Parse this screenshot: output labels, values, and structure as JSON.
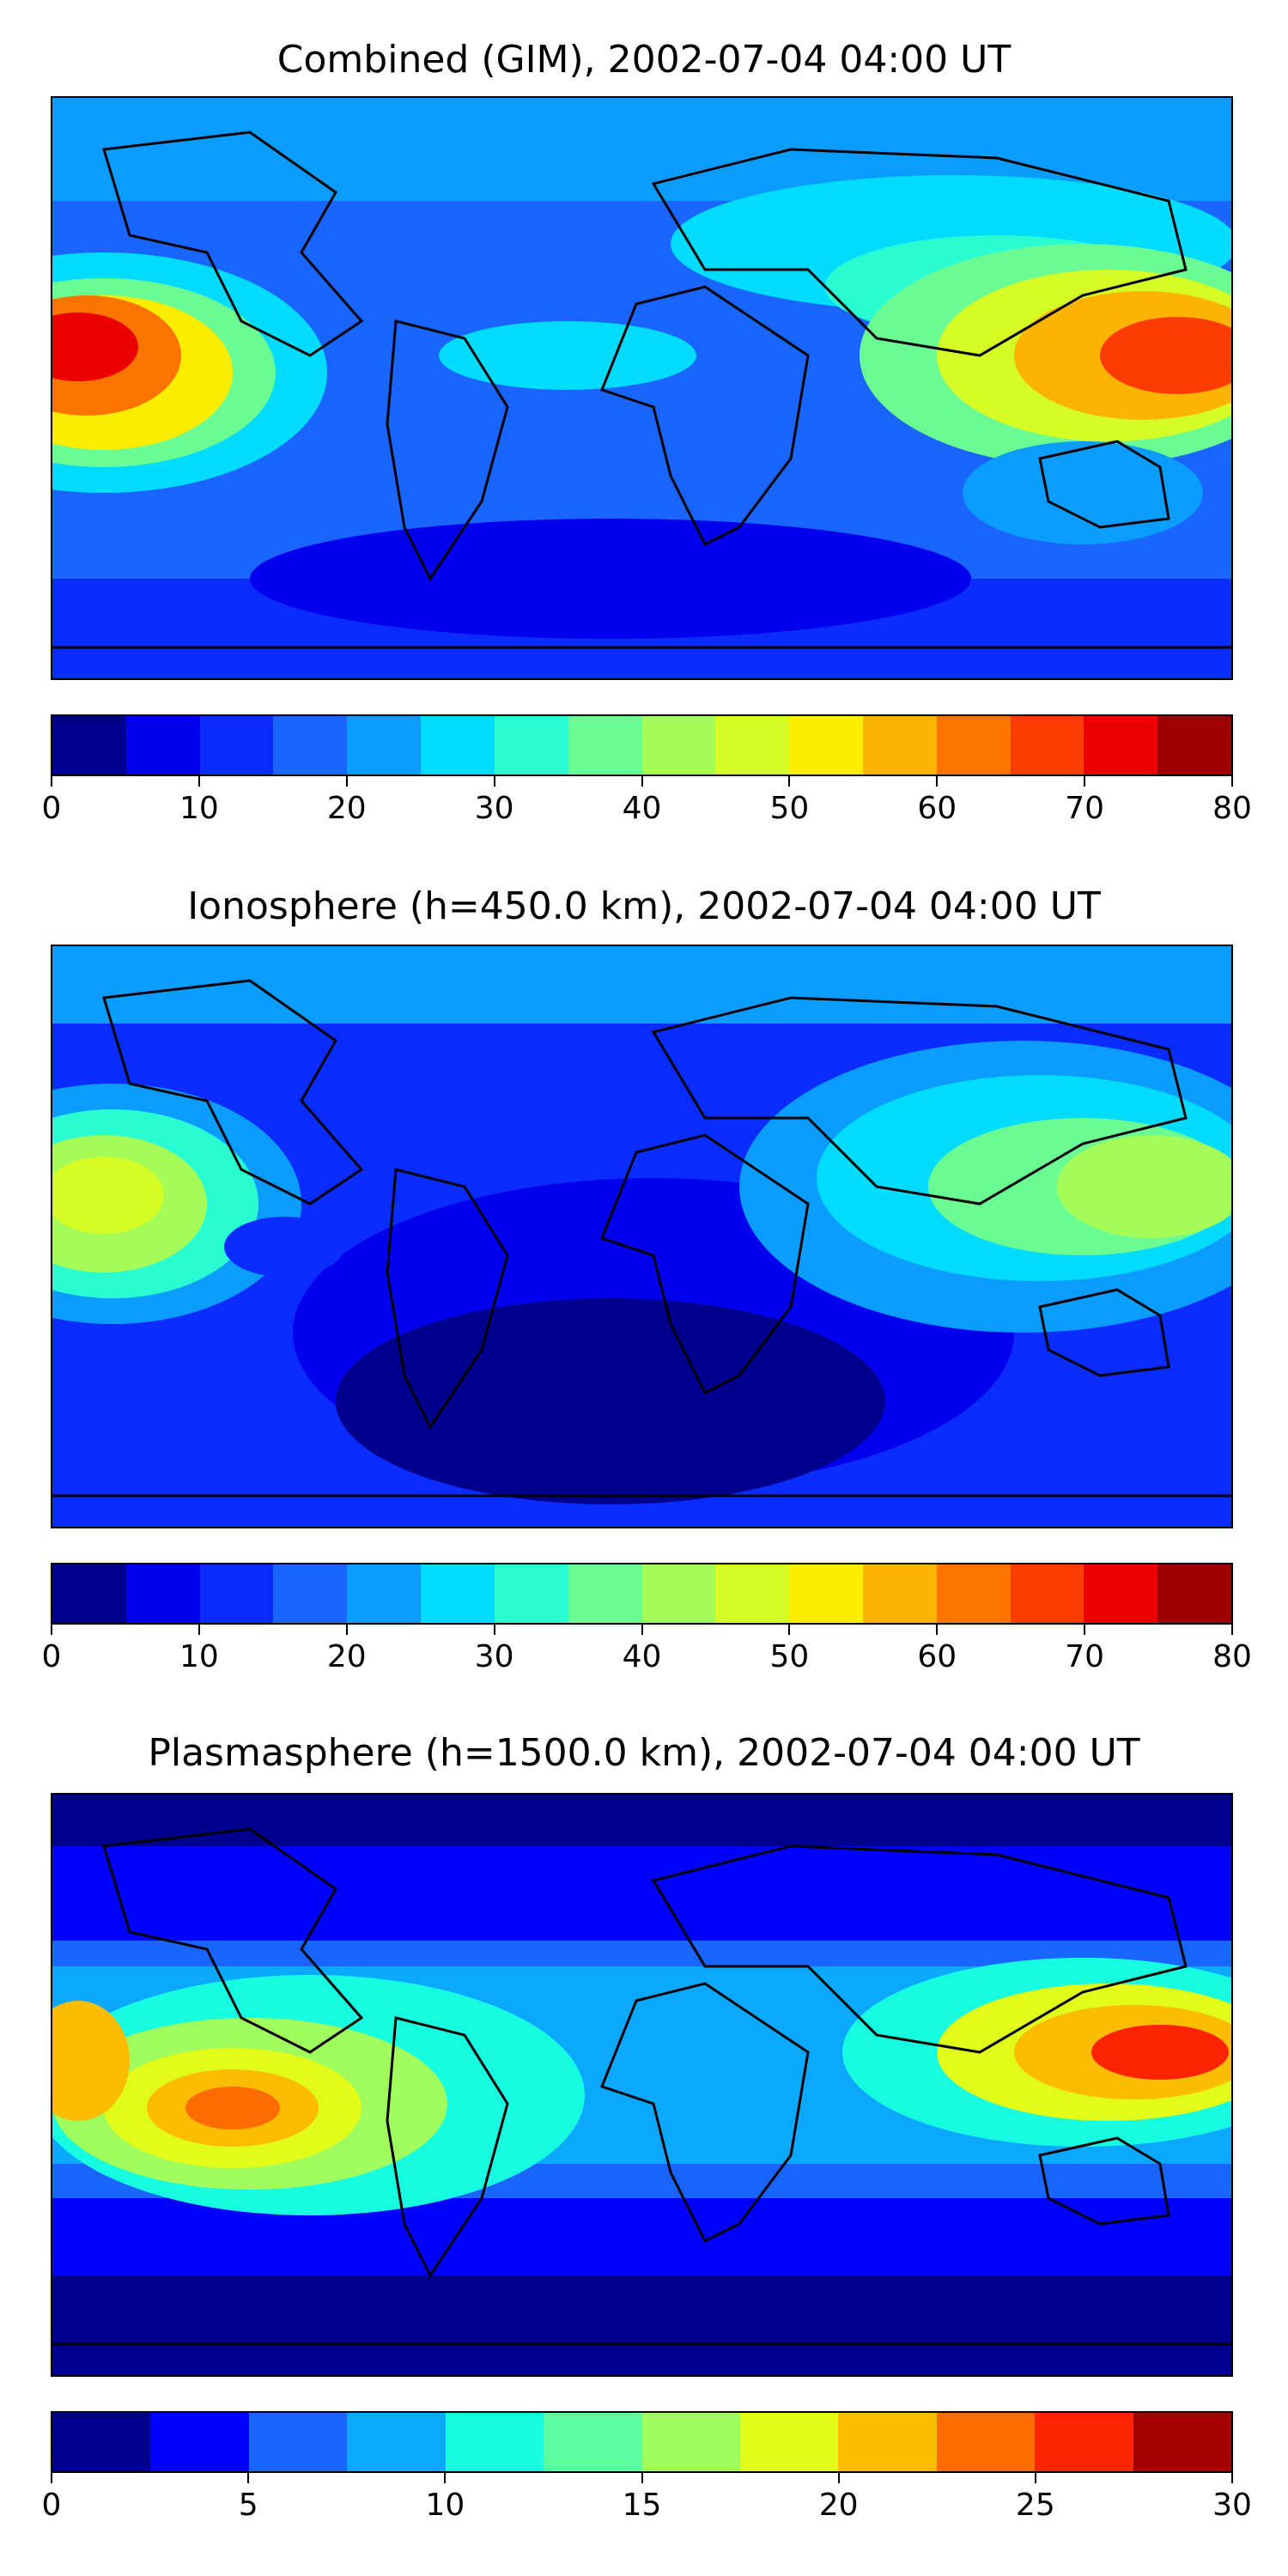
{
  "panels": [
    {
      "title": "Combined (GIM), 2002-07-04 04:00 UT",
      "colorbar": {
        "min": 0,
        "max": 80,
        "ticks": [
          "0",
          "10",
          "20",
          "30",
          "40",
          "50",
          "60",
          "70",
          "80"
        ],
        "colors": [
          "#00008f",
          "#0000ef",
          "#0a2cff",
          "#1a64ff",
          "#0a9cff",
          "#00dcff",
          "#2afcd2",
          "#6afc92",
          "#a6fc56",
          "#d6fc26",
          "#fcec00",
          "#fcb400",
          "#fc7400",
          "#fc3c00",
          "#ec0000",
          "#9c0000"
        ]
      }
    },
    {
      "title": "Ionosphere  (h=450.0 km), 2002-07-04 04:00 UT",
      "colorbar": {
        "min": 0,
        "max": 80,
        "ticks": [
          "0",
          "10",
          "20",
          "30",
          "40",
          "50",
          "60",
          "70",
          "80"
        ],
        "colors": [
          "#00008f",
          "#0000ef",
          "#0a2cff",
          "#1a64ff",
          "#0a9cff",
          "#00dcff",
          "#2afcd2",
          "#6afc92",
          "#a6fc56",
          "#d6fc26",
          "#fcec00",
          "#fcb400",
          "#fc7400",
          "#fc3c00",
          "#ec0000",
          "#9c0000"
        ]
      }
    },
    {
      "title": "Plasmasphere (h=1500.0 km), 2002-07-04 04:00 UT",
      "colorbar": {
        "min": 0,
        "max": 30,
        "ticks": [
          "0",
          "5",
          "10",
          "15",
          "20",
          "25",
          "30"
        ],
        "colors": [
          "#00008f",
          "#0000ff",
          "#1a64ff",
          "#0aa8ff",
          "#16fce0",
          "#5cfca0",
          "#a0fc5c",
          "#e2fc1a",
          "#fcbc00",
          "#fc6c00",
          "#fc2400",
          "#a40000"
        ]
      }
    }
  ]
}
